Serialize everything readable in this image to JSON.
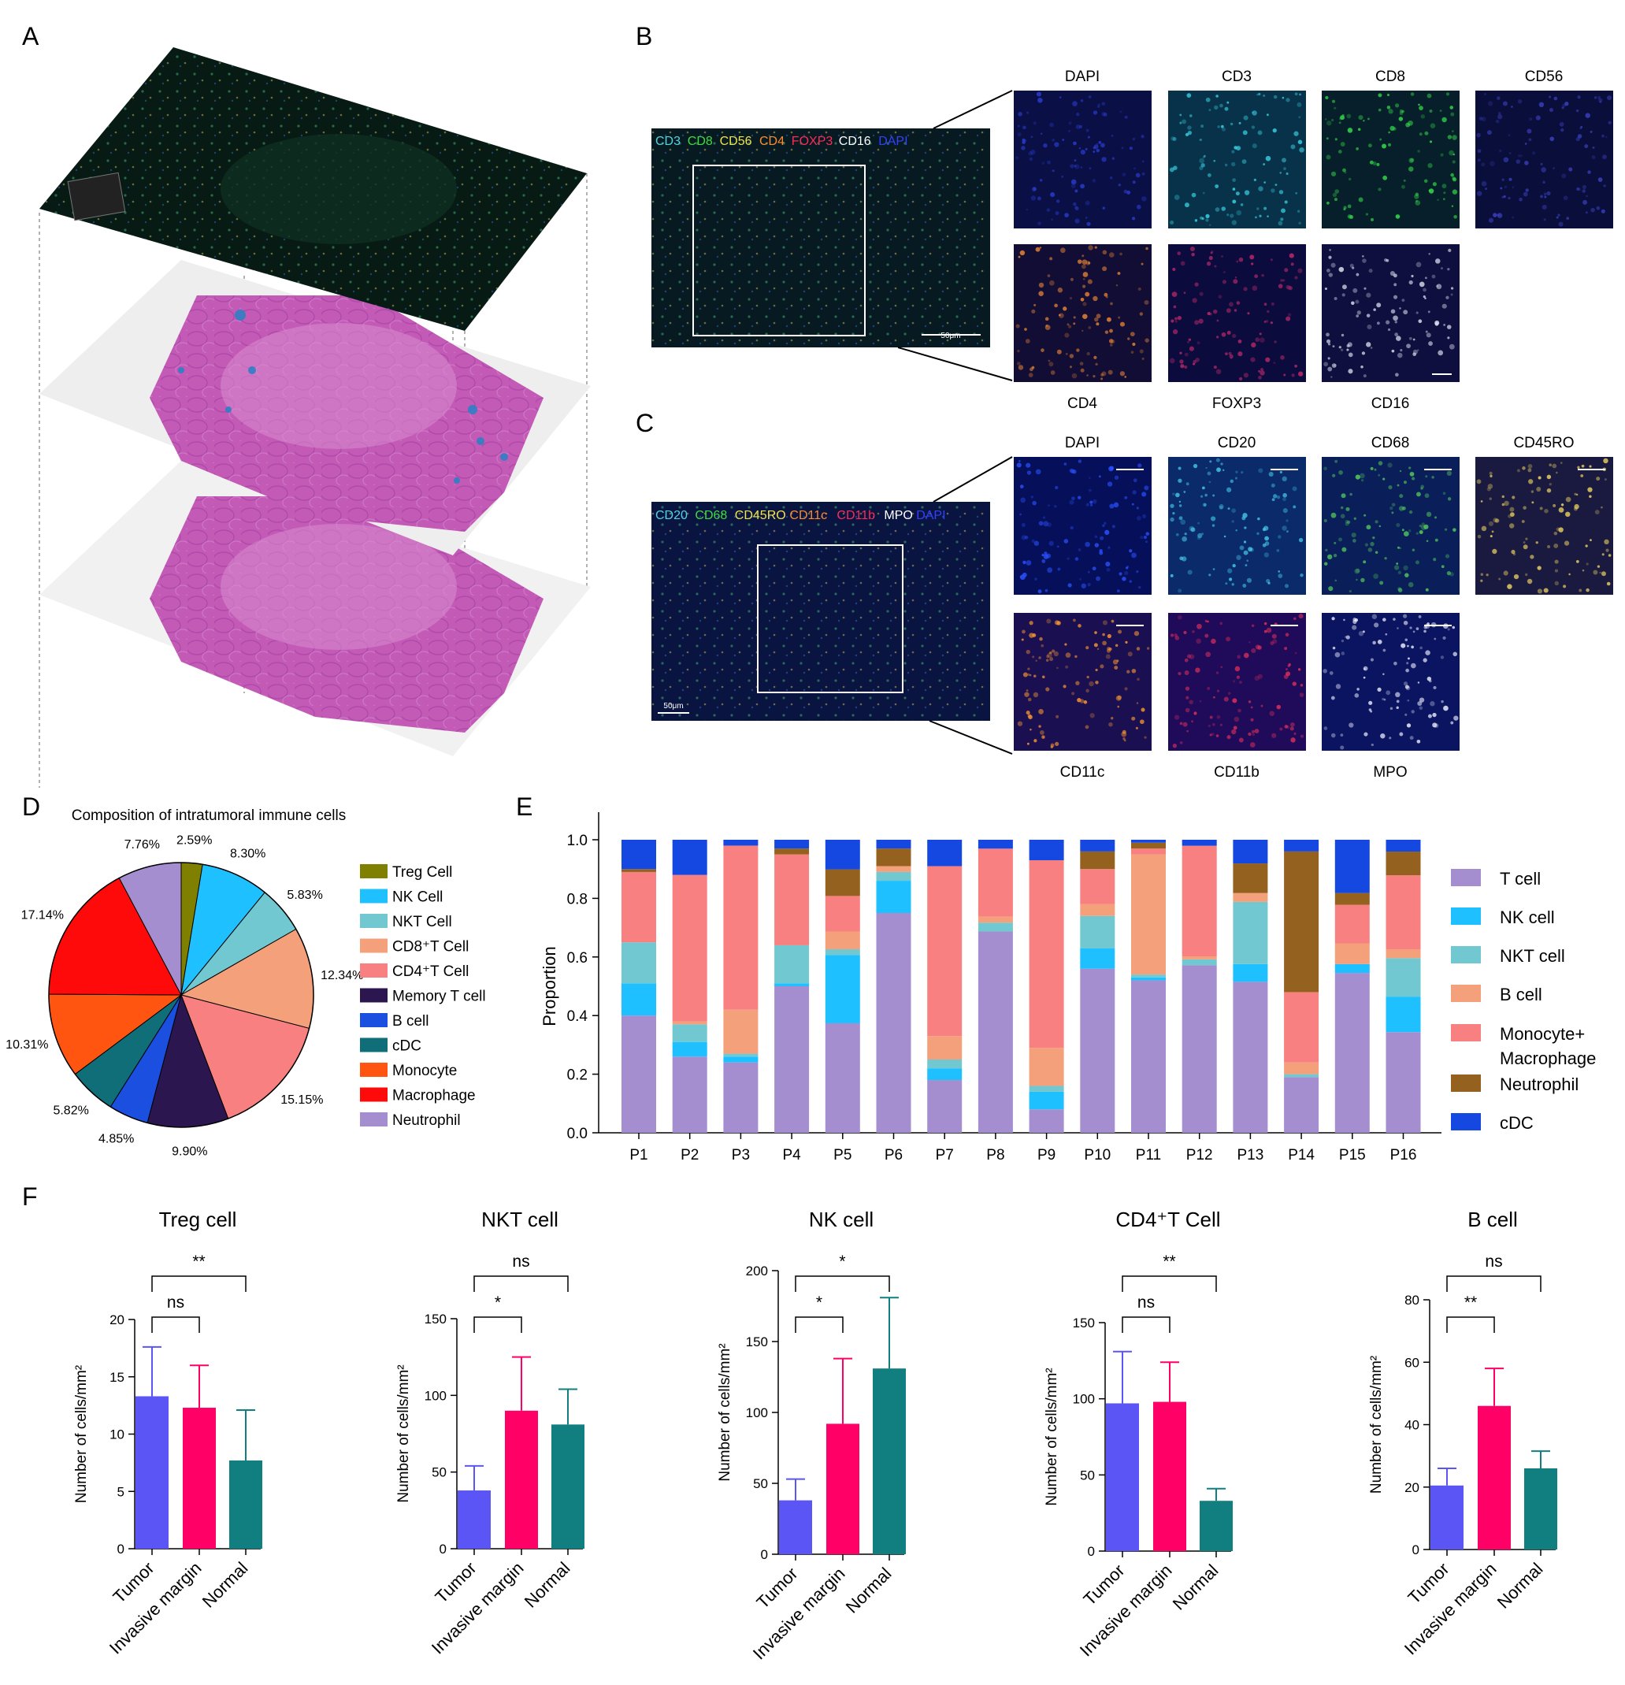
{
  "panel_letters": [
    "A",
    "B",
    "C",
    "D",
    "E",
    "F"
  ],
  "colors": {
    "he_pink": "#c25ab6",
    "he_light": "#e3a0d8",
    "he_blue": "#2f7fc4",
    "if_dark": "#071a14",
    "dapi_blue": "#0d1250"
  },
  "panel_b": {
    "merge_labels": [
      {
        "text": "CD3",
        "color": "#4fd4e0"
      },
      {
        "text": "CD8",
        "color": "#3ddc3d"
      },
      {
        "text": "CD56",
        "color": "#f2e24a"
      },
      {
        "text": "CD4",
        "color": "#ff8c2a"
      },
      {
        "text": "FOXP3",
        "color": "#ff2a55"
      },
      {
        "text": "CD16",
        "color": "#ffffff"
      },
      {
        "text": "DAPI",
        "color": "#3340ff"
      }
    ],
    "scale_text": "50μm",
    "tiles": [
      {
        "label": "DAPI",
        "bg": "#0a0f45",
        "dot": "#2a3ccf",
        "row": 0,
        "col": 0
      },
      {
        "label": "CD3",
        "bg": "#08324a",
        "dot": "#39d6e6",
        "row": 0,
        "col": 1
      },
      {
        "label": "CD8",
        "bg": "#061f2a",
        "dot": "#35e04a",
        "row": 0,
        "col": 2
      },
      {
        "label": "CD56",
        "bg": "#090e3a",
        "dot": "#3b3fbf",
        "row": 0,
        "col": 3
      },
      {
        "label": "CD4",
        "bg": "#120d35",
        "dot": "#e88434",
        "row": 1,
        "col": 0
      },
      {
        "label": "FOXP3",
        "bg": "#0c0b3e",
        "dot": "#c02a6a",
        "row": 1,
        "col": 1
      },
      {
        "label": "CD16",
        "bg": "#0e0f3e",
        "dot": "#e0e0f0",
        "row": 1,
        "col": 2
      }
    ]
  },
  "panel_c": {
    "merge_labels": [
      {
        "text": "CD20",
        "color": "#4fd4e0"
      },
      {
        "text": "CD68",
        "color": "#3ddc3d"
      },
      {
        "text": "CD45RO",
        "color": "#f2e24a"
      },
      {
        "text": "CD11c",
        "color": "#ff8c2a"
      },
      {
        "text": "CD11b",
        "color": "#ff2a55"
      },
      {
        "text": "MPO",
        "color": "#ffffff"
      },
      {
        "text": "DAPI",
        "color": "#3340ff"
      }
    ],
    "scale_text": "50μm",
    "tiles": [
      {
        "label": "DAPI",
        "bg": "#06105a",
        "dot": "#2a50ff",
        "row": 0,
        "col": 0
      },
      {
        "label": "CD20",
        "bg": "#0a2a6a",
        "dot": "#45c8e8",
        "row": 0,
        "col": 1
      },
      {
        "label": "CD68",
        "bg": "#0a1e5a",
        "dot": "#56d05a",
        "row": 0,
        "col": 2
      },
      {
        "label": "CD45RO",
        "bg": "#1a1a40",
        "dot": "#f2d860",
        "row": 0,
        "col": 3
      },
      {
        "label": "CD11c",
        "bg": "#1a0f50",
        "dot": "#ff9a30",
        "row": 1,
        "col": 0
      },
      {
        "label": "CD11b",
        "bg": "#200a5a",
        "dot": "#e0305a",
        "row": 1,
        "col": 1
      },
      {
        "label": "MPO",
        "bg": "#0a1460",
        "dot": "#f0f0ff",
        "row": 1,
        "col": 2
      }
    ]
  },
  "panel_d": {
    "title": "Composition of intratumoral immune cells",
    "slices": [
      {
        "name": "Treg Cell",
        "value": 2.59,
        "label": "2.59%",
        "color": "#808000"
      },
      {
        "name": "NK Cell",
        "value": 8.3,
        "label": "8.30%",
        "color": "#1ec0ff"
      },
      {
        "name": "NKT Cell",
        "value": 5.83,
        "label": "5.83%",
        "color": "#72c8d0"
      },
      {
        "name": "CD8⁺T Cell",
        "value": 12.34,
        "label": "12.34%",
        "color": "#f4a07a"
      },
      {
        "name": "CD4⁺T Cell",
        "value": 15.15,
        "label": "15.15%",
        "color": "#f88080"
      },
      {
        "name": "Memory T cell",
        "value": 9.9,
        "label": "9.90%",
        "color": "#2b1650"
      },
      {
        "name": "B cell",
        "value": 4.85,
        "label": "4.85%",
        "color": "#1a4fe0"
      },
      {
        "name": "cDC",
        "value": 5.82,
        "label": "5.82%",
        "color": "#0f6e78"
      },
      {
        "name": "Monocyte",
        "value": 10.31,
        "label": "10.31%",
        "color": "#ff5510"
      },
      {
        "name": "Macrophage",
        "value": 17.14,
        "label": "17.14%",
        "color": "#ff0a0a"
      },
      {
        "name": "Neutrophil",
        "value": 7.76,
        "label": "7.76%",
        "color": "#a48ed0"
      }
    ]
  },
  "chart_data": [
    {
      "type": "bar",
      "stacked": true,
      "ylabel": "Proportion",
      "ylim": [
        0,
        1.0
      ],
      "yticks": [
        "0.0",
        "0.2",
        "0.4",
        "0.6",
        "0.8",
        "1.0"
      ],
      "categories": [
        "P1",
        "P2",
        "P3",
        "P4",
        "P5",
        "P6",
        "P7",
        "P8",
        "P9",
        "P10",
        "P11",
        "P12",
        "P13",
        "P14",
        "P15",
        "P16"
      ],
      "series": [
        {
          "name": "T cell",
          "color": "#a48ed0",
          "values": [
            0.4,
            0.26,
            0.24,
            0.5,
            0.37,
            0.75,
            0.18,
            0.68,
            0.08,
            0.56,
            0.52,
            0.56,
            0.51,
            0.19,
            0.54,
            0.34
          ]
        },
        {
          "name": "NK cell",
          "color": "#1ec0ff",
          "values": [
            0.11,
            0.05,
            0.02,
            0.01,
            0.23,
            0.11,
            0.04,
            0.0,
            0.06,
            0.07,
            0.01,
            0.0,
            0.06,
            0.0,
            0.03,
            0.12
          ]
        },
        {
          "name": "NKT cell",
          "color": "#72c8d0",
          "values": [
            0.14,
            0.06,
            0.01,
            0.13,
            0.02,
            0.03,
            0.03,
            0.03,
            0.02,
            0.11,
            0.01,
            0.02,
            0.21,
            0.01,
            0.0,
            0.13
          ]
        },
        {
          "name": "B cell",
          "color": "#f4a07a",
          "values": [
            0.0,
            0.01,
            0.15,
            0.0,
            0.06,
            0.02,
            0.08,
            0.02,
            0.13,
            0.04,
            0.41,
            0.01,
            0.03,
            0.04,
            0.07,
            0.03
          ]
        },
        {
          "name": "Monocyte+\nMacrophage",
          "color": "#f88080",
          "values": [
            0.24,
            0.5,
            0.56,
            0.31,
            0.12,
            0.0,
            0.58,
            0.23,
            0.64,
            0.12,
            0.02,
            0.37,
            0.0,
            0.24,
            0.13,
            0.25
          ]
        },
        {
          "name": "Neutrophil",
          "color": "#94621e",
          "values": [
            0.01,
            0.0,
            0.0,
            0.02,
            0.09,
            0.06,
            0.0,
            0.0,
            0.0,
            0.06,
            0.02,
            0.0,
            0.1,
            0.48,
            0.04,
            0.08
          ]
        },
        {
          "name": "cDC",
          "color": "#1448e0",
          "values": [
            0.1,
            0.12,
            0.02,
            0.03,
            0.1,
            0.03,
            0.09,
            0.03,
            0.07,
            0.04,
            0.01,
            0.02,
            0.08,
            0.04,
            0.18,
            0.04
          ]
        }
      ],
      "legend_position": "right"
    },
    {
      "type": "bar",
      "title": "Treg cell",
      "ylabel": "Number of cells/mm²",
      "ylim": [
        0,
        20
      ],
      "yticks": [
        0,
        5,
        10,
        15,
        20
      ],
      "categories": [
        "Tumor",
        "Invasive margin",
        "Normal"
      ],
      "values": [
        13.3,
        12.3,
        7.7
      ],
      "errors": [
        4.3,
        3.7,
        4.4
      ],
      "significance": [
        {
          "from": 0,
          "to": 1,
          "label": "ns"
        },
        {
          "from": 0,
          "to": 2,
          "label": "**"
        }
      ]
    },
    {
      "type": "bar",
      "title": "NKT cell",
      "ylabel": "Number of cells/mm²",
      "ylim": [
        0,
        150
      ],
      "yticks": [
        0,
        50,
        100,
        150
      ],
      "categories": [
        "Tumor",
        "Invasive margin",
        "Normal"
      ],
      "values": [
        38,
        90,
        81
      ],
      "errors": [
        16,
        35,
        23
      ],
      "significance": [
        {
          "from": 0,
          "to": 1,
          "label": "*"
        },
        {
          "from": 0,
          "to": 2,
          "label": "ns"
        }
      ]
    },
    {
      "type": "bar",
      "title": "NK cell",
      "ylabel": "Number of cells/mm²",
      "ylim": [
        0,
        200
      ],
      "yticks": [
        0,
        50,
        100,
        150,
        200
      ],
      "categories": [
        "Tumor",
        "Invasive margin",
        "Normal"
      ],
      "values": [
        38,
        92,
        131
      ],
      "errors": [
        15,
        46,
        50
      ],
      "significance": [
        {
          "from": 0,
          "to": 1,
          "label": "*"
        },
        {
          "from": 0,
          "to": 2,
          "label": "*"
        }
      ]
    },
    {
      "type": "bar",
      "title": "CD4⁺T Cell",
      "ylabel": "Number of cells/mm²",
      "ylim": [
        0,
        150
      ],
      "yticks": [
        0,
        50,
        100,
        150
      ],
      "categories": [
        "Tumor",
        "Invasive margin",
        "Normal"
      ],
      "values": [
        97,
        98,
        33
      ],
      "errors": [
        34,
        26,
        8
      ],
      "significance": [
        {
          "from": 0,
          "to": 1,
          "label": "ns"
        },
        {
          "from": 0,
          "to": 2,
          "label": "**"
        }
      ]
    },
    {
      "type": "bar",
      "title": "B cell",
      "ylabel": "Number of cells/mm²",
      "ylim": [
        0,
        80
      ],
      "yticks": [
        0,
        20,
        40,
        60,
        80
      ],
      "categories": [
        "Tumor",
        "Invasive margin",
        "Normal"
      ],
      "values": [
        20.5,
        46,
        26
      ],
      "errors": [
        5.5,
        12,
        5.5
      ],
      "significance": [
        {
          "from": 0,
          "to": 1,
          "label": "**"
        },
        {
          "from": 0,
          "to": 2,
          "label": "ns"
        }
      ]
    }
  ],
  "bar_colors": [
    "#5b55f5",
    "#ff0066",
    "#117f7f"
  ]
}
